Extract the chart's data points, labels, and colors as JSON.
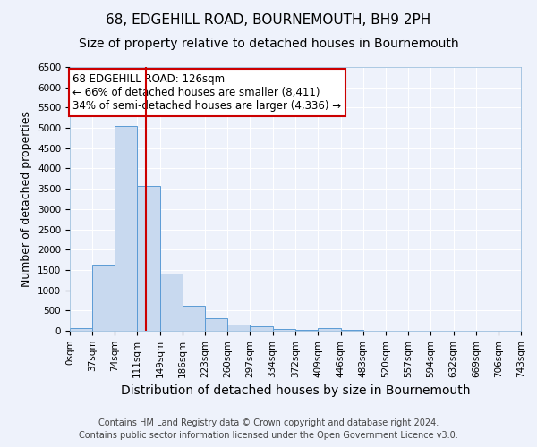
{
  "title": "68, EDGEHILL ROAD, BOURNEMOUTH, BH9 2PH",
  "subtitle": "Size of property relative to detached houses in Bournemouth",
  "xlabel": "Distribution of detached houses by size in Bournemouth",
  "ylabel": "Number of detached properties",
  "footnote1": "Contains HM Land Registry data © Crown copyright and database right 2024.",
  "footnote2": "Contains public sector information licensed under the Open Government Licence v3.0.",
  "bar_edges": [
    0,
    37,
    74,
    111,
    149,
    186,
    223,
    260,
    297,
    334,
    372,
    409,
    446,
    483,
    520,
    557,
    594,
    632,
    669,
    706,
    743
  ],
  "bar_heights": [
    75,
    1630,
    5050,
    3580,
    1410,
    615,
    300,
    155,
    110,
    55,
    30,
    60,
    20,
    0,
    0,
    0,
    0,
    0,
    0,
    0
  ],
  "bar_color": "#c8d9ef",
  "bar_edge_color": "#5b9bd5",
  "vline_x": 126,
  "vline_color": "#cc0000",
  "annotation_text": "68 EDGEHILL ROAD: 126sqm\n← 66% of detached houses are smaller (8,411)\n34% of semi-detached houses are larger (4,336) →",
  "annotation_box_color": "#cc0000",
  "ylim": [
    0,
    6500
  ],
  "yticks": [
    0,
    500,
    1000,
    1500,
    2000,
    2500,
    3000,
    3500,
    4000,
    4500,
    5000,
    5500,
    6000,
    6500
  ],
  "background_color": "#eef2fb",
  "grid_color": "#ffffff",
  "title_fontsize": 11,
  "subtitle_fontsize": 10,
  "xlabel_fontsize": 10,
  "ylabel_fontsize": 9,
  "tick_fontsize": 7.5,
  "footnote_fontsize": 7,
  "annot_fontsize": 8.5
}
